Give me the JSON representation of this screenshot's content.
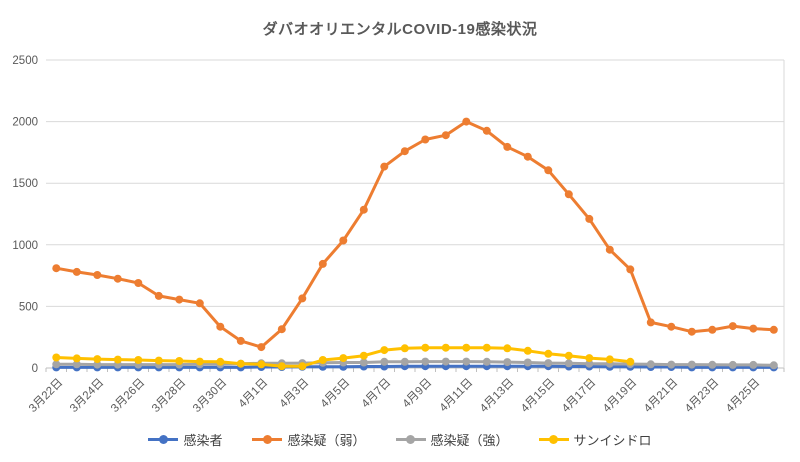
{
  "chart_data": {
    "type": "line",
    "title": "ダバオオリエンタルCOVID-19感染状況",
    "x_tick_labels": [
      "3月22日",
      "3月24日",
      "3月26日",
      "3月28日",
      "3月30日",
      "4月1日",
      "4月3日",
      "4月5日",
      "4月7日",
      "4月9日",
      "4月11日",
      "4月13日",
      "4月15日",
      "4月17日",
      "4月19日",
      "4月21日",
      "4月23日",
      "4月25日"
    ],
    "dates": [
      "3月22日",
      "3月23日",
      "3月24日",
      "3月25日",
      "3月26日",
      "3月27日",
      "3月28日",
      "3月29日",
      "3月30日",
      "3月31日",
      "4月1日",
      "4月2日",
      "4月3日",
      "4月4日",
      "4月5日",
      "4月6日",
      "4月7日",
      "4月8日",
      "4月9日",
      "4月10日",
      "4月11日",
      "4月12日",
      "4月13日",
      "4月14日",
      "4月15日",
      "4月16日",
      "4月17日",
      "4月18日",
      "4月19日",
      "4月20日",
      "4月21日",
      "4月22日",
      "4月23日",
      "4月24日",
      "4月25日",
      "4月26日"
    ],
    "yticks": [
      0,
      500,
      1000,
      1500,
      2000,
      2500
    ],
    "ylim": [
      0,
      2500
    ],
    "grid": true,
    "legend_position": "bottom",
    "series": [
      {
        "name": "感染者",
        "color": "#4472C4",
        "values": [
          5,
          5,
          5,
          5,
          5,
          5,
          5,
          5,
          5,
          5,
          8,
          8,
          10,
          10,
          10,
          12,
          12,
          15,
          15,
          15,
          15,
          15,
          15,
          15,
          15,
          12,
          12,
          10,
          10,
          8,
          8,
          5,
          5,
          5,
          5,
          5
        ]
      },
      {
        "name": "感染疑（弱）",
        "color": "#ED7D31",
        "values": [
          810,
          780,
          755,
          725,
          690,
          585,
          555,
          525,
          335,
          220,
          170,
          315,
          565,
          845,
          1035,
          1285,
          1635,
          1760,
          1855,
          1890,
          2000,
          1925,
          1795,
          1715,
          1605,
          1410,
          1210,
          960,
          800,
          370,
          335,
          295,
          310,
          340,
          320,
          310
        ]
      },
      {
        "name": "感染疑（強）",
        "color": "#A5A5A5",
        "values": [
          30,
          30,
          28,
          28,
          28,
          28,
          28,
          30,
          30,
          35,
          38,
          38,
          40,
          42,
          45,
          45,
          50,
          50,
          52,
          52,
          52,
          50,
          48,
          45,
          40,
          38,
          35,
          35,
          32,
          30,
          28,
          28,
          26,
          25,
          25,
          22
        ]
      },
      {
        "name": "サンイシドロ",
        "color": "#FFC000",
        "values": [
          85,
          78,
          72,
          68,
          65,
          60,
          57,
          52,
          50,
          35,
          30,
          15,
          15,
          65,
          80,
          100,
          145,
          160,
          165,
          165,
          165,
          165,
          160,
          140,
          115,
          100,
          80,
          70,
          50
        ]
      }
    ]
  },
  "styles": {
    "title_color": "#595959",
    "axis_label_color": "#595959",
    "gridline_color": "#D9D9D9",
    "axis_line_color": "#BFBFBF",
    "legend_text_color": "#404040",
    "background": "#FFFFFF"
  }
}
